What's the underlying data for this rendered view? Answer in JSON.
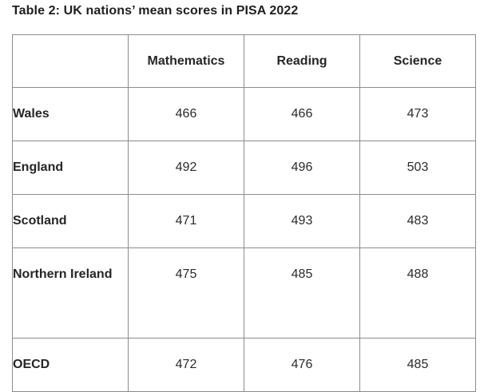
{
  "caption": "Table 2: UK nations’ mean scores in PISA 2022",
  "table": {
    "columns": [
      "",
      "Mathematics",
      "Reading",
      "Science"
    ],
    "rows": [
      {
        "label": "Wales",
        "values": [
          "466",
          "466",
          "473"
        ]
      },
      {
        "label": "England",
        "values": [
          "492",
          "496",
          "503"
        ]
      },
      {
        "label": "Scotland",
        "values": [
          "471",
          "493",
          "483"
        ]
      },
      {
        "label": "Northern Ireland",
        "values": [
          "475",
          "485",
          "488"
        ]
      },
      {
        "label": "OECD",
        "values": [
          "472",
          "476",
          "485"
        ]
      }
    ]
  }
}
